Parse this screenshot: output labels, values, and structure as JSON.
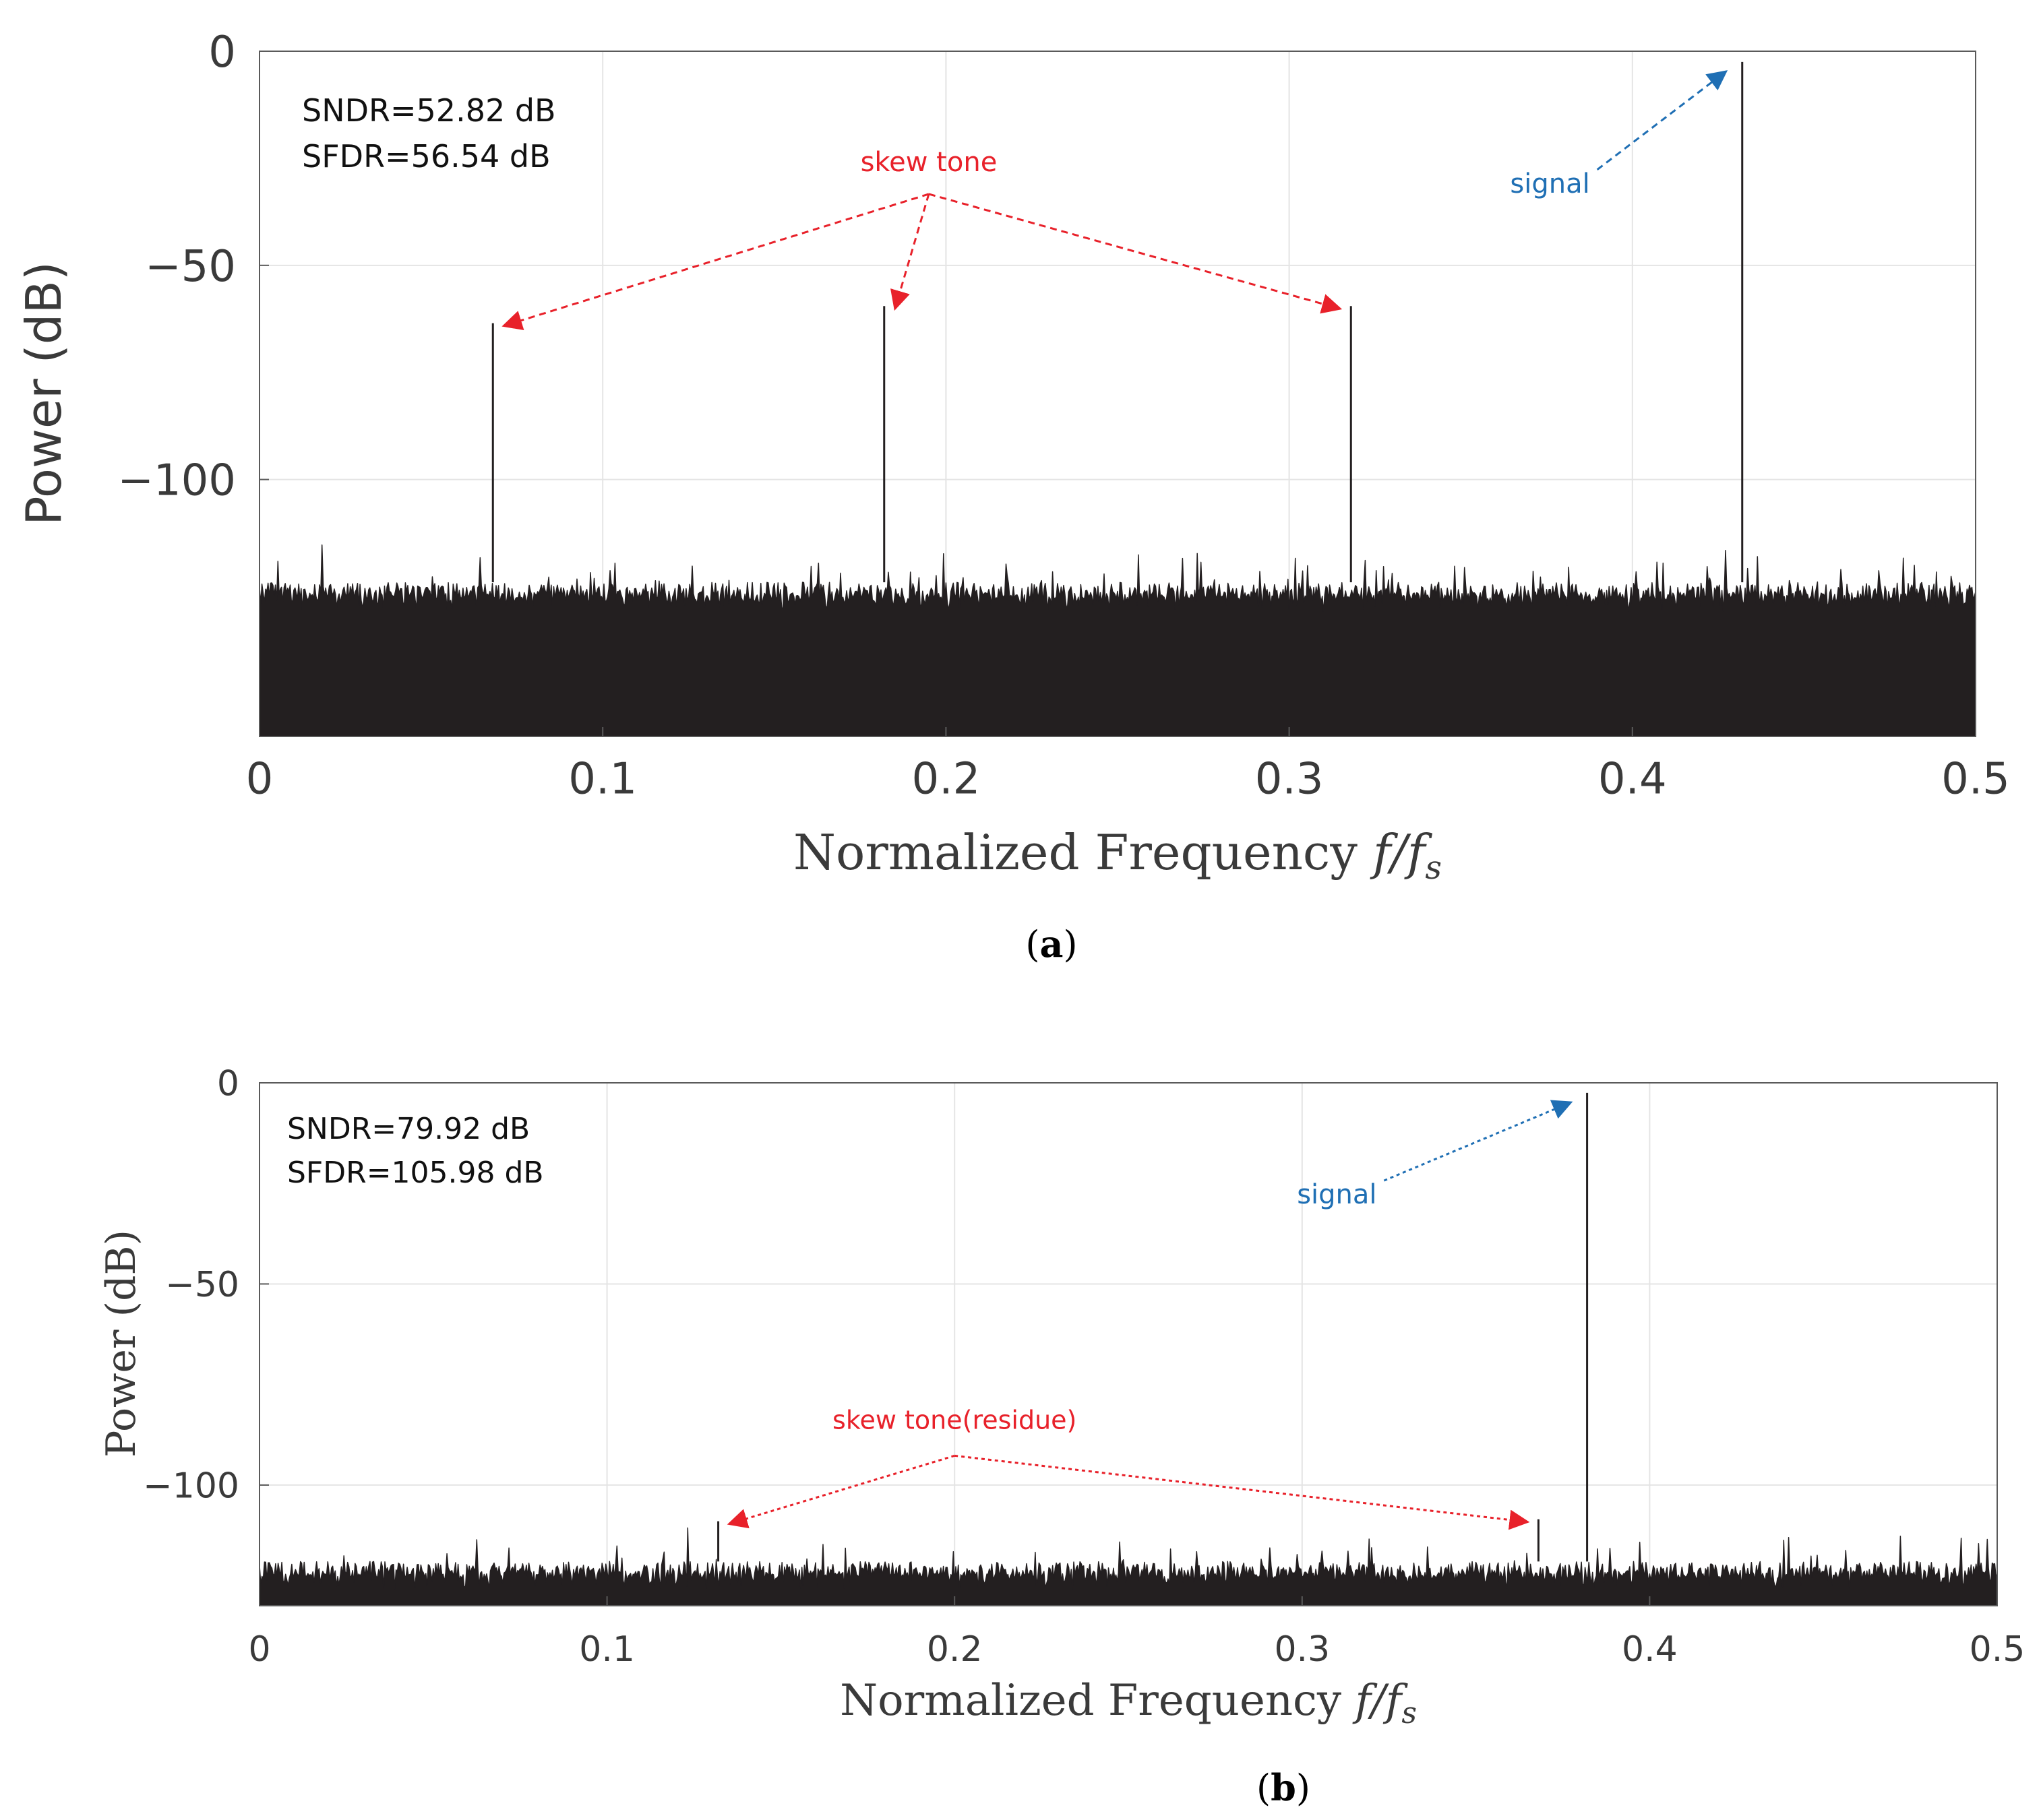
{
  "colors": {
    "trace": "#231f20",
    "grid": "#e4e4e4",
    "axis": "#5a5a5a",
    "skew_annotation": "#e8212a",
    "signal_annotation": "#1f6fb4"
  },
  "chart_data": [
    {
      "panel": "(a)",
      "type": "line",
      "caption_letter": "a",
      "xlabel_text": "Normalized Frequency ",
      "xlabel_math": "f/f",
      "xlabel_sub": "s",
      "ylabel": "Power (dB)",
      "xlim": [
        0,
        0.5
      ],
      "ylim": [
        -160,
        0
      ],
      "xticks": [
        0,
        0.1,
        0.2,
        0.3,
        0.4,
        0.5
      ],
      "xtick_labels": [
        "0",
        "0.1",
        "0.2",
        "0.3",
        "0.4",
        "0.5"
      ],
      "yticks": [
        0,
        -50,
        -100
      ],
      "ytick_labels": [
        "0",
        "−50",
        "−100"
      ],
      "grid": true,
      "sndr": "SNDR=52.82 dB",
      "sfdr": "SFDR=56.54 dB",
      "noise_floor": {
        "min": -160,
        "typical_top": -124,
        "peak_top": -115
      },
      "tones": [
        {
          "name": "skew-tone-1",
          "f": 0.068,
          "power": -63.5
        },
        {
          "name": "skew-tone-2",
          "f": 0.182,
          "power": -59.5
        },
        {
          "name": "skew-tone-3",
          "f": 0.318,
          "power": -59.5
        },
        {
          "name": "signal-tone",
          "f": 0.432,
          "power": -2.5
        }
      ],
      "annotations": {
        "skew": {
          "label": "skew tone",
          "label_f": 0.195,
          "label_power": -28,
          "targets": [
            0,
            1,
            2
          ]
        },
        "signal": {
          "label": "signal",
          "label_f": 0.376,
          "label_power": -33,
          "targets": [
            3
          ]
        }
      }
    },
    {
      "panel": "(b)",
      "type": "line",
      "caption_letter": "b",
      "xlabel_text": "Normalized Frequency ",
      "xlabel_math": "f/f",
      "xlabel_sub": "s",
      "ylabel": "Power (dB)",
      "xlim": [
        0,
        0.5
      ],
      "ylim": [
        -130,
        0
      ],
      "xticks": [
        0,
        0.1,
        0.2,
        0.3,
        0.4,
        0.5
      ],
      "xtick_labels": [
        "0",
        "0.1",
        "0.2",
        "0.3",
        "0.4",
        "0.5"
      ],
      "yticks": [
        0,
        -50,
        -100
      ],
      "ytick_labels": [
        "0",
        "−50",
        "−100"
      ],
      "grid": true,
      "sndr": "SNDR=79.92 dB",
      "sfdr": "SFDR=105.98 dB",
      "noise_floor": {
        "min": -130,
        "typical_top": -119,
        "peak_top": -110
      },
      "tones": [
        {
          "name": "residue-tone-1",
          "f": 0.132,
          "power": -109
        },
        {
          "name": "residue-tone-2",
          "f": 0.368,
          "power": -108.5
        },
        {
          "name": "signal-tone",
          "f": 0.382,
          "power": -2.5
        }
      ],
      "annotations": {
        "skew": {
          "label": "skew tone(residue)",
          "label_f": 0.2,
          "label_power": -86,
          "targets": [
            0,
            1
          ]
        },
        "signal": {
          "label": "signal",
          "label_f": 0.31,
          "label_power": -30,
          "targets": [
            2
          ]
        }
      }
    }
  ]
}
